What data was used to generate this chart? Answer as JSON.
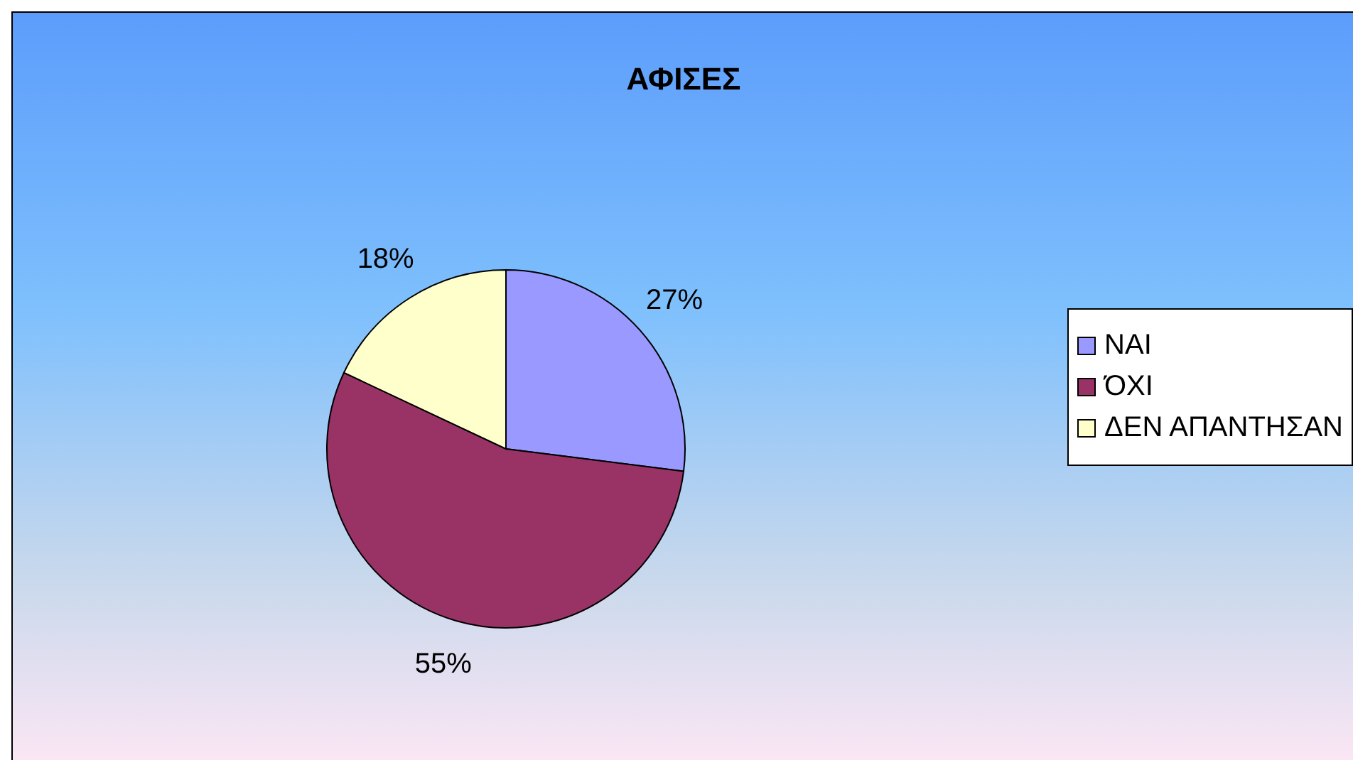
{
  "chart_data": {
    "type": "pie",
    "title": "ΑΦΙΣΕΣ",
    "categories": [
      "ΝΑΙ",
      "ΌΧΙ",
      "ΔΕΝ ΑΠΑΝΤΗΣΑΝ"
    ],
    "values": [
      27,
      55,
      18
    ],
    "colors": [
      "#9999ff",
      "#993366",
      "#ffffcc"
    ],
    "value_labels": [
      "27%",
      "55%",
      "18%"
    ],
    "legend": "right"
  }
}
